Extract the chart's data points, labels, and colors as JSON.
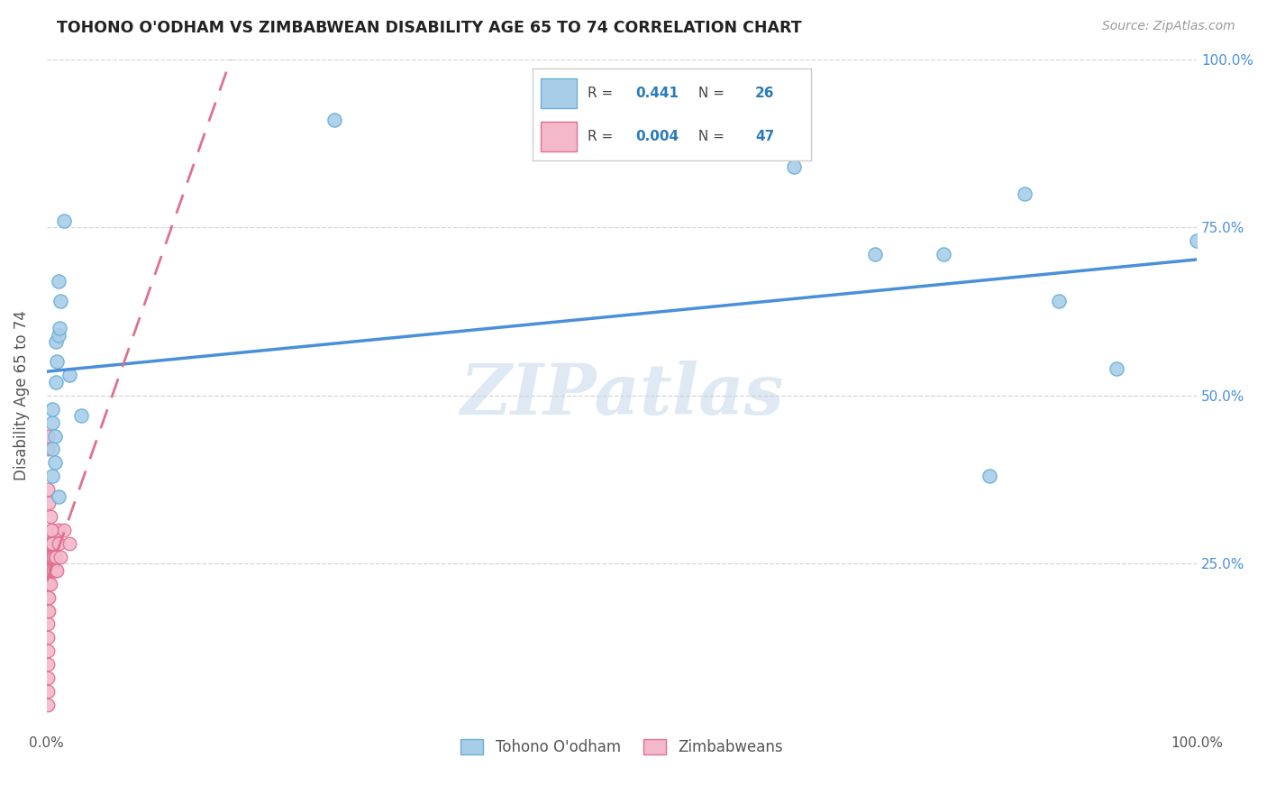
{
  "title": "TOHONO O'ODHAM VS ZIMBABWEAN DISABILITY AGE 65 TO 74 CORRELATION CHART",
  "source": "Source: ZipAtlas.com",
  "ylabel": "Disability Age 65 to 74",
  "xlim": [
    0,
    1
  ],
  "ylim": [
    0,
    1
  ],
  "legend_R": [
    "0.441",
    "0.004"
  ],
  "legend_N": [
    "26",
    "47"
  ],
  "blue_color": "#a8cde8",
  "blue_edge_color": "#6aafd6",
  "pink_color": "#f4b8cb",
  "pink_edge_color": "#e07090",
  "blue_line_color": "#4a90d9",
  "pink_line_color": "#e07090",
  "watermark": "ZIPatlas",
  "tohono_x": [
    0.005,
    0.005,
    0.007,
    0.008,
    0.008,
    0.01,
    0.01,
    0.01,
    0.012,
    0.015,
    0.02,
    0.03,
    0.25,
    0.65,
    0.72,
    0.78,
    0.82,
    0.85,
    0.88,
    0.93,
    1.0,
    0.005,
    0.005,
    0.007,
    0.009,
    0.011
  ],
  "tohono_y": [
    0.46,
    0.48,
    0.44,
    0.58,
    0.52,
    0.67,
    0.59,
    0.35,
    0.64,
    0.76,
    0.53,
    0.47,
    0.91,
    0.84,
    0.71,
    0.71,
    0.38,
    0.8,
    0.64,
    0.54,
    0.73,
    0.42,
    0.38,
    0.4,
    0.55,
    0.6
  ],
  "zimbabwe_x": [
    0.001,
    0.001,
    0.001,
    0.001,
    0.001,
    0.001,
    0.001,
    0.001,
    0.002,
    0.002,
    0.002,
    0.002,
    0.002,
    0.002,
    0.003,
    0.003,
    0.003,
    0.003,
    0.004,
    0.004,
    0.004,
    0.005,
    0.005,
    0.005,
    0.006,
    0.006,
    0.007,
    0.007,
    0.008,
    0.008,
    0.009,
    0.01,
    0.01,
    0.012,
    0.015,
    0.02,
    0.001,
    0.001,
    0.001,
    0.002,
    0.003,
    0.004,
    0.001,
    0.001,
    0.001,
    0.001,
    0.001
  ],
  "zimbabwe_y": [
    0.28,
    0.26,
    0.24,
    0.22,
    0.2,
    0.18,
    0.16,
    0.14,
    0.28,
    0.26,
    0.24,
    0.22,
    0.2,
    0.18,
    0.28,
    0.26,
    0.24,
    0.22,
    0.28,
    0.26,
    0.24,
    0.3,
    0.28,
    0.26,
    0.26,
    0.24,
    0.26,
    0.24,
    0.26,
    0.24,
    0.24,
    0.3,
    0.28,
    0.26,
    0.3,
    0.28,
    0.44,
    0.42,
    0.36,
    0.34,
    0.32,
    0.3,
    0.12,
    0.1,
    0.08,
    0.06,
    0.04
  ],
  "background_color": "#ffffff",
  "grid_color": "#cccccc"
}
